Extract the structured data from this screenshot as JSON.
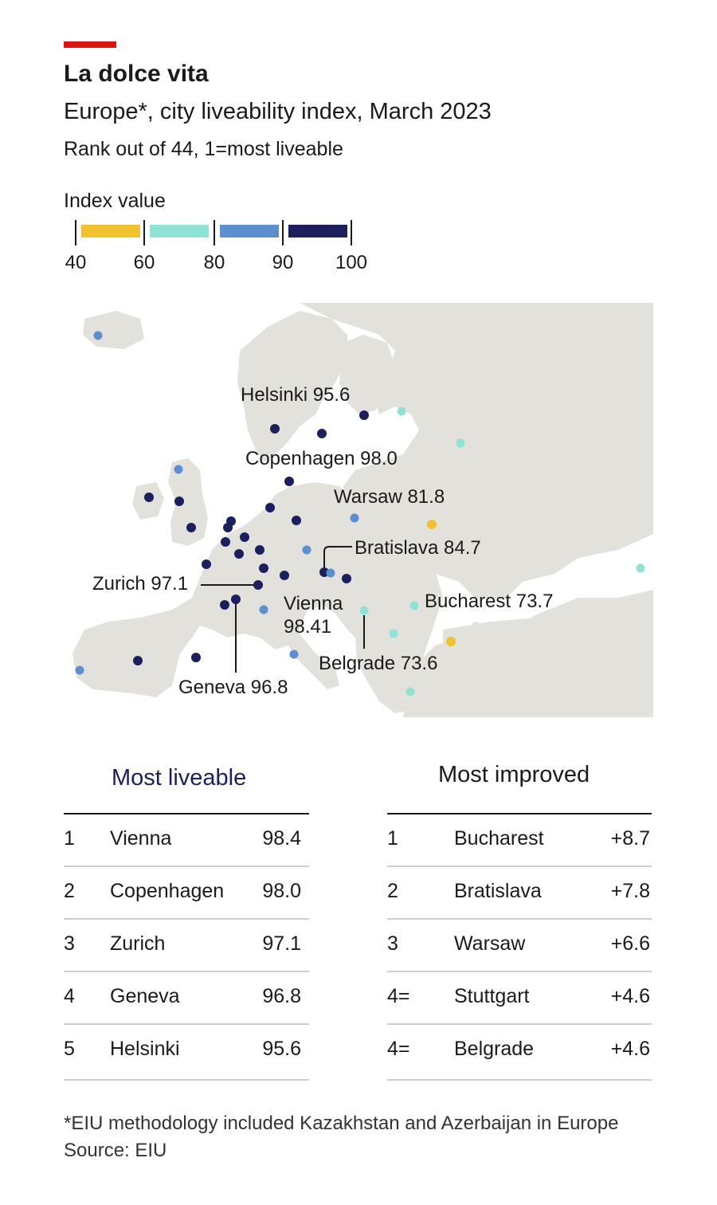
{
  "header": {
    "title": "La dolce vita",
    "subtitle": "Europe*, city liveability index, March 2023",
    "rank_note": "Rank out of 44, 1=most liveable"
  },
  "legend": {
    "title": "Index value",
    "bins": [
      {
        "from": 40,
        "to": 60,
        "color": "#f2c12e"
      },
      {
        "from": 60,
        "to": 80,
        "color": "#8fe3d4"
      },
      {
        "from": 80,
        "to": 90,
        "color": "#5b8fd0"
      },
      {
        "from": 90,
        "to": 100,
        "color": "#1b1f5e"
      }
    ],
    "ticks": [
      "40",
      "60",
      "80",
      "90",
      "100"
    ]
  },
  "map": {
    "land_color": "#e3e1dc",
    "labels": {
      "helsinki": "Helsinki 95.6",
      "copenhagen": "Copenhagen 98.0",
      "warsaw": "Warsaw 81.8",
      "bratislava": "Bratislava 84.7",
      "zurich": "Zurich 97.1",
      "vienna_1": "Vienna",
      "vienna_2": "98.41",
      "bucharest": "Bucharest 73.7",
      "belgrade": "Belgrade 73.6",
      "geneva": "Geneva 96.8"
    }
  },
  "most_liveable": {
    "title": "Most liveable",
    "rows": [
      {
        "rank": "1",
        "city": "Vienna",
        "value": "98.4"
      },
      {
        "rank": "2",
        "city": "Copenhagen",
        "value": "98.0"
      },
      {
        "rank": "3",
        "city": "Zurich",
        "value": "97.1"
      },
      {
        "rank": "4",
        "city": "Geneva",
        "value": "96.8"
      },
      {
        "rank": "5",
        "city": "Helsinki",
        "value": "95.6"
      }
    ]
  },
  "most_improved": {
    "title": "Most improved",
    "rows": [
      {
        "rank": "1",
        "city": "Bucharest",
        "value": "+8.7"
      },
      {
        "rank": "2",
        "city": "Bratislava",
        "value": "+7.8"
      },
      {
        "rank": "3",
        "city": "Warsaw",
        "value": "+6.6"
      },
      {
        "rank": "4=",
        "city": "Stuttgart",
        "value": "+4.6"
      },
      {
        "rank": "4=",
        "city": "Belgrade",
        "value": "+4.6"
      }
    ]
  },
  "footnote": "*EIU methodology included Kazakhstan and Azerbaijan in Europe",
  "source": "Source: EIU"
}
